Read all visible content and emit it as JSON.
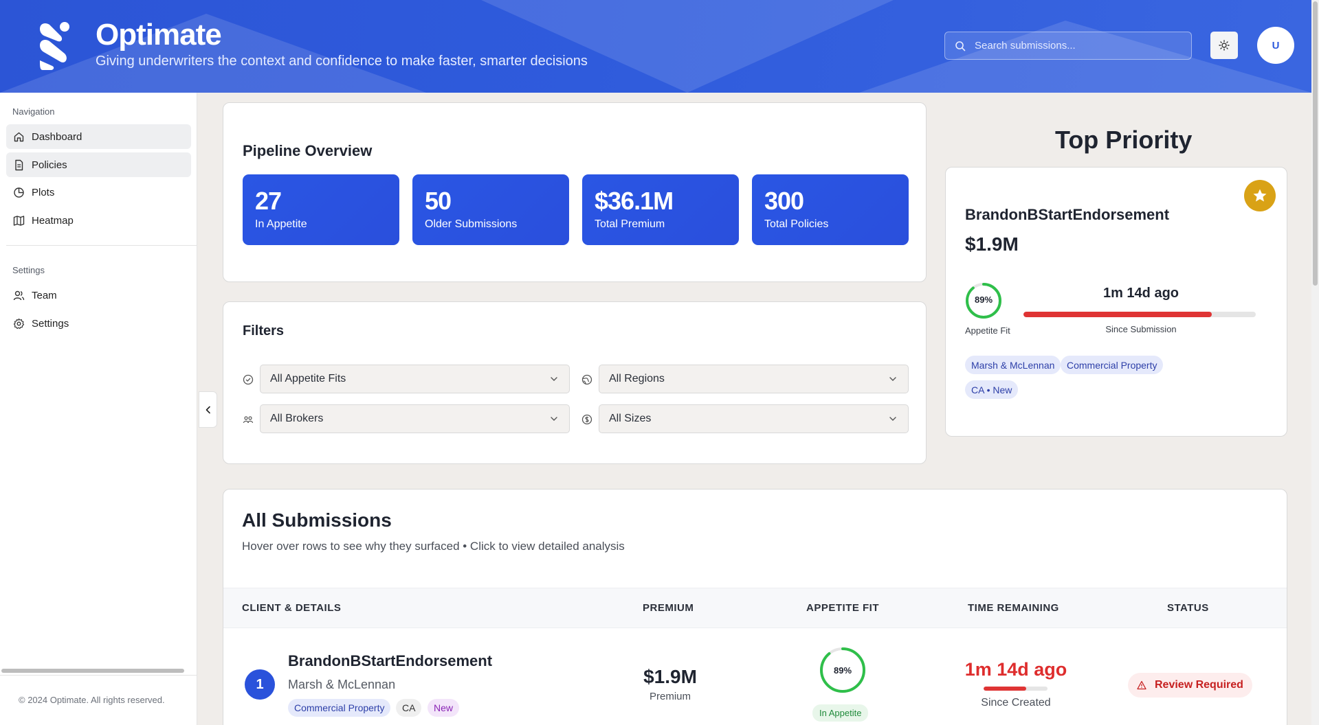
{
  "header": {
    "title": "Optimate",
    "subtitle": "Giving underwriters the context and confidence to make faster, smarter decisions",
    "search_placeholder": "Search submissions...",
    "avatar_initial": "U"
  },
  "sidebar": {
    "nav_heading": "Navigation",
    "nav_items": [
      {
        "label": "Dashboard",
        "icon": "home-icon",
        "active": true
      },
      {
        "label": "Policies",
        "icon": "document-icon",
        "active": true
      },
      {
        "label": "Plots",
        "icon": "pie-chart-icon",
        "active": false
      },
      {
        "label": "Heatmap",
        "icon": "map-icon",
        "active": false
      }
    ],
    "settings_heading": "Settings",
    "settings_items": [
      {
        "label": "Team",
        "icon": "users-icon"
      },
      {
        "label": "Settings",
        "icon": "gear-icon"
      }
    ],
    "footer": "© 2024 Optimate. All rights reserved."
  },
  "pipeline": {
    "title": "Pipeline Overview",
    "stats": [
      {
        "value": "27",
        "label": "In Appetite"
      },
      {
        "value": "50",
        "label": "Older Submissions"
      },
      {
        "value": "$36.1M",
        "label": "Total Premium"
      },
      {
        "value": "300",
        "label": "Total Policies"
      }
    ]
  },
  "filters": {
    "title": "Filters",
    "appetite": "All Appetite Fits",
    "regions": "All Regions",
    "brokers": "All Brokers",
    "sizes": "All Sizes"
  },
  "top_priority": {
    "heading": "Top Priority",
    "name": "BrandonBStartEndorsement",
    "premium": "$1.9M",
    "appetite_fit_pct": 89,
    "appetite_fit_text": "89%",
    "appetite_fit_label": "Appetite Fit",
    "time": "1m 14d ago",
    "time_label": "Since Submission",
    "time_bar_fraction": 0.81,
    "chips": [
      "Marsh & McLennan",
      "Commercial Property",
      "CA • New"
    ]
  },
  "submissions": {
    "title": "All Submissions",
    "description": "Hover over rows to see why they surfaced • Click to view detailed analysis",
    "columns": [
      "CLIENT & DETAILS",
      "PREMIUM",
      "APPETITE FIT",
      "TIME REMAINING",
      "STATUS"
    ],
    "rows": [
      {
        "rank": "1",
        "name": "BrandonBStartEndorsement",
        "broker": "Marsh & McLennan",
        "tags": [
          "Commercial Property",
          "CA",
          "New"
        ],
        "premium": "$1.9M",
        "premium_label": "Premium",
        "appetite_fit_pct": 89,
        "appetite_fit_text": "89%",
        "appetite_status": "In Appetite",
        "time": "1m 14d ago",
        "time_label": "Since Created",
        "time_bar_fraction": 0.67,
        "status": "Review Required"
      }
    ]
  },
  "colors": {
    "primary": "#2f5bdc",
    "danger": "#df3434",
    "success": "#2fbf4a",
    "gold": "#d9a216"
  }
}
